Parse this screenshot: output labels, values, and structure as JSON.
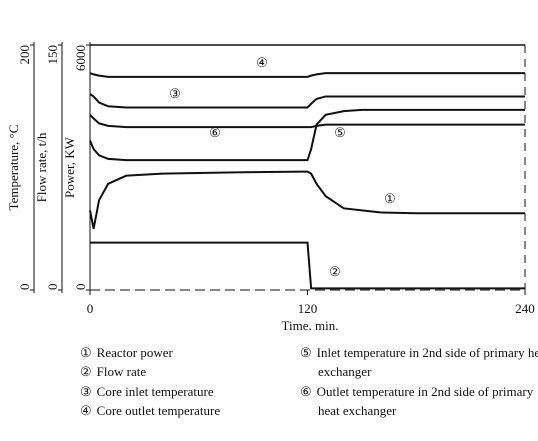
{
  "chart_data": {
    "type": "line",
    "xlabel": "Time, min.",
    "ylabel": "Temperature, °C",
    "y2label": "Flow rate, t/h",
    "y3label": "Power, KW",
    "x": [
      0,
      2,
      5,
      10,
      20,
      40,
      80,
      118,
      120,
      122,
      125,
      130,
      140,
      150,
      160,
      180,
      200,
      240
    ],
    "xlim": [
      0,
      240
    ],
    "xticks": [
      0,
      120,
      240
    ],
    "ylim": [
      0,
      200
    ],
    "yticks": [
      0,
      200
    ],
    "y2lim": [
      0,
      150
    ],
    "y2ticks": [
      0,
      150
    ],
    "y3lim": [
      0,
      6000
    ],
    "y3ticks": [
      0,
      6000
    ],
    "series": [
      {
        "label": "①",
        "name": "Reactor power",
        "axis": "y3",
        "color": "#111",
        "values": [
          1950,
          1500,
          2200,
          2600,
          2800,
          2850,
          2880,
          2900,
          2900,
          2850,
          2600,
          2300,
          2000,
          1950,
          1900,
          1880,
          1880,
          1880
        ]
      },
      {
        "label": "②",
        "name": "Flow rate",
        "axis": "y2",
        "color": "#111",
        "values": [
          29,
          29,
          29,
          29,
          29,
          29,
          29,
          29,
          29,
          1,
          1,
          1,
          1,
          1,
          1,
          1,
          1,
          1
        ]
      },
      {
        "label": "③",
        "name": "Core inlet temperature",
        "axis": "y",
        "color": "#111",
        "values": [
          160,
          158,
          153,
          150,
          149,
          149,
          149,
          149,
          149,
          152,
          156,
          158,
          158,
          158,
          158,
          158,
          158,
          158
        ]
      },
      {
        "label": "④",
        "name": "Core outlet temperature",
        "axis": "y",
        "color": "#111",
        "values": [
          177,
          176,
          175,
          174,
          174,
          174,
          174,
          174,
          174,
          175,
          176,
          177,
          177,
          177,
          177,
          177,
          177,
          177
        ]
      },
      {
        "label": "⑤",
        "name": "Inlet temperature in 2nd side of primary heat exchanger",
        "axis": "y",
        "color": "#111",
        "values": [
          122,
          115,
          110,
          107,
          106,
          106,
          106,
          106,
          106,
          115,
          135,
          143,
          146,
          147,
          147,
          147,
          147,
          147
        ]
      },
      {
        "label": "⑥",
        "name": "Outlet temperature in 2nd side of primary heat exchanger",
        "axis": "y",
        "color": "#111",
        "values": [
          143,
          140,
          136,
          134,
          133,
          133,
          133,
          133,
          133,
          133,
          134,
          135,
          135,
          135,
          135,
          135,
          135,
          135
        ]
      }
    ]
  }
}
